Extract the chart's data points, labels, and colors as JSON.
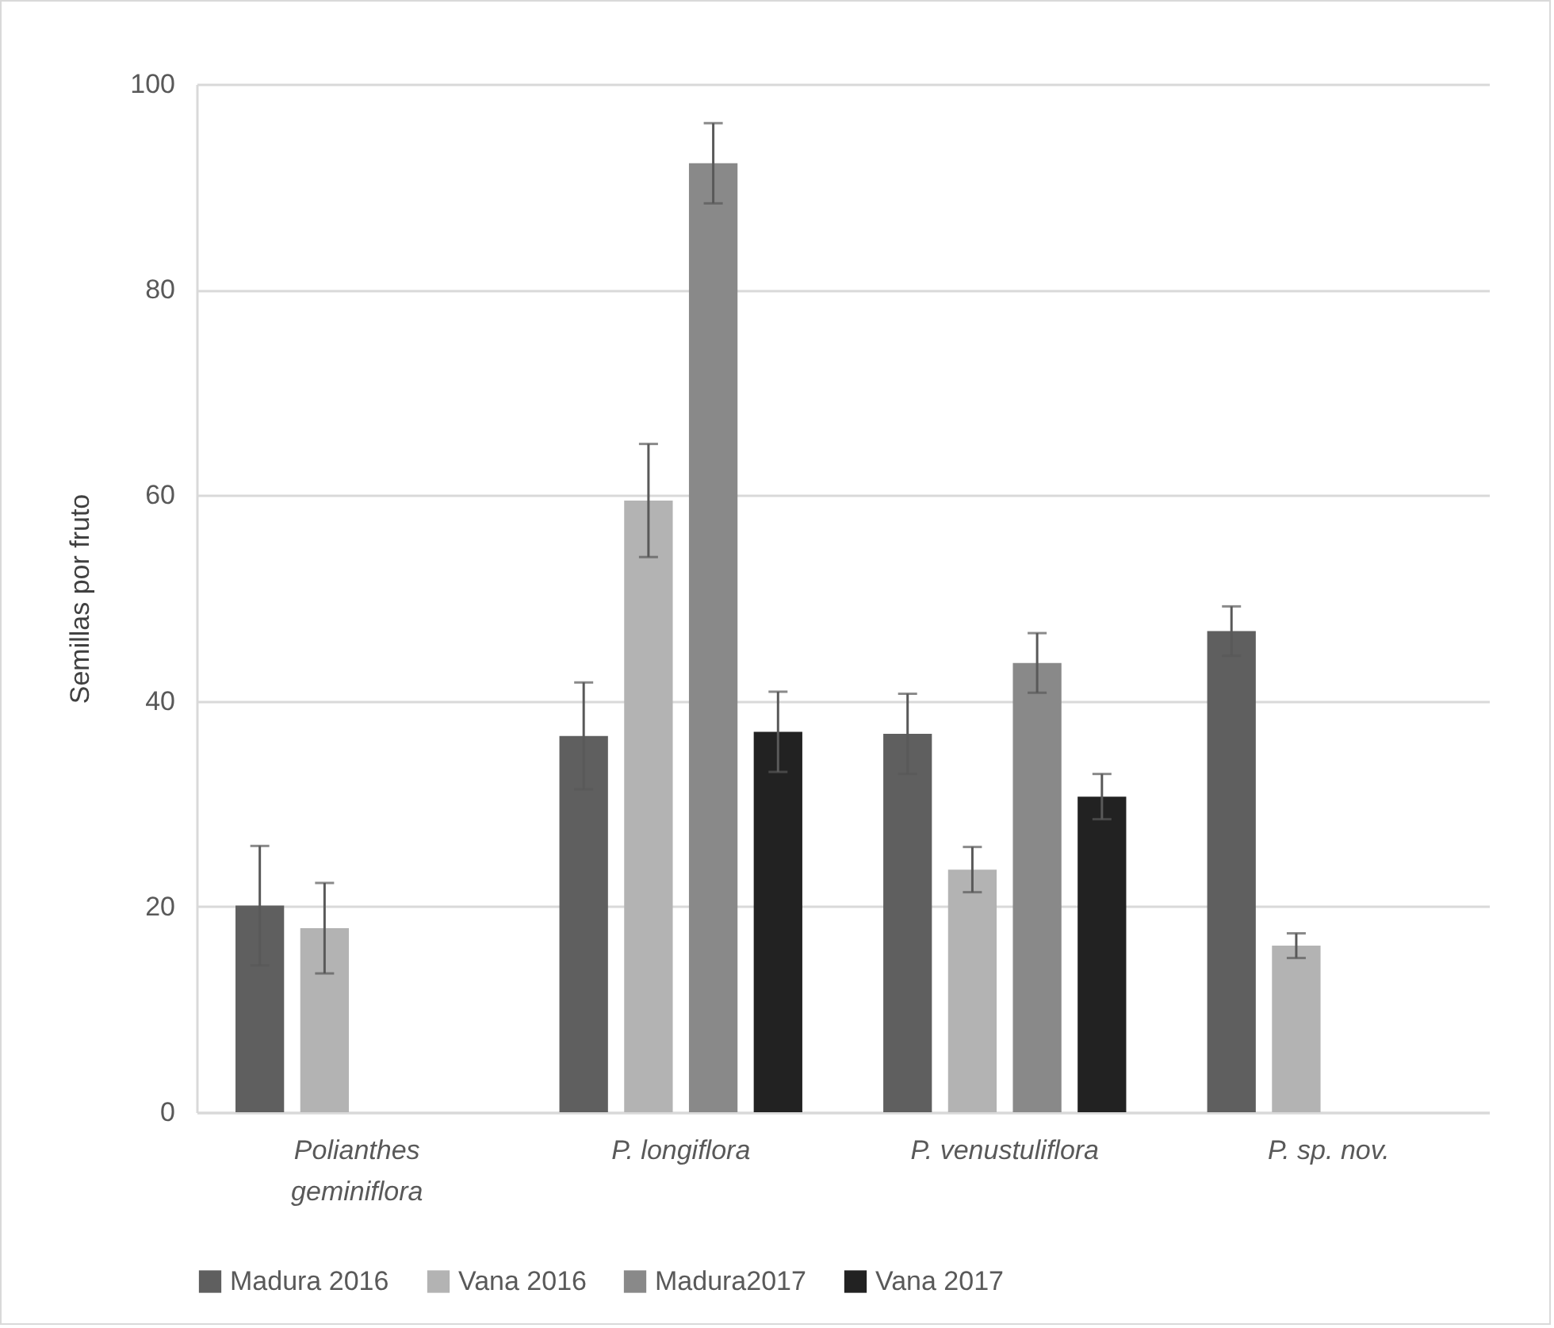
{
  "chart_data": {
    "type": "bar",
    "ylabel": "Semillas por fruto",
    "categories": [
      "Polianthes geminiflora",
      "P. longiflora",
      "P. venustuliflora",
      "P. sp. nov."
    ],
    "series": [
      {
        "name": "Madura 2016",
        "color": "#5f5f5f",
        "values": [
          20.1,
          36.6,
          36.8,
          46.8
        ],
        "errors": [
          5.8,
          5.2,
          3.9,
          2.4
        ]
      },
      {
        "name": "Vana 2016",
        "color": "#b3b3b3",
        "values": [
          17.9,
          59.5,
          23.6,
          16.2
        ],
        "errors": [
          4.4,
          5.5,
          2.2,
          1.2
        ]
      },
      {
        "name": "Madura2017",
        "color": "#898989",
        "values": [
          null,
          92.3,
          43.7,
          null
        ],
        "errors": [
          null,
          3.9,
          2.9,
          null
        ]
      },
      {
        "name": "Vana 2017",
        "color": "#222222",
        "values": [
          null,
          37.0,
          30.7,
          null
        ],
        "errors": [
          null,
          3.9,
          2.2,
          null
        ]
      }
    ],
    "ylim": [
      0,
      100
    ],
    "yticks": [
      0,
      20,
      40,
      60,
      80,
      100
    ],
    "grid": "y",
    "legend": "bottom"
  }
}
